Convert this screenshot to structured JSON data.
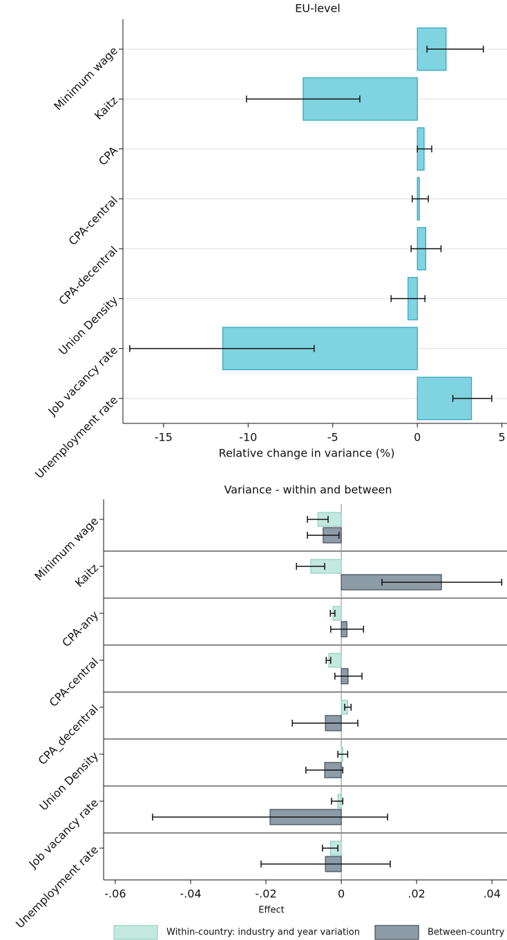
{
  "chart_data": [
    {
      "type": "bar",
      "orientation": "horizontal",
      "title": "EU-level",
      "x_label": "Relative change in variance (%)",
      "categories": [
        "Minimum wage",
        "Kaitz",
        "CPA",
        "CPA-central",
        "CPA-decentral",
        "Union Density",
        "Job vacancy rate",
        "Unemployment rate"
      ],
      "values": [
        1.7,
        -6.75,
        0.4,
        0.12,
        0.5,
        -0.55,
        -11.5,
        3.2
      ],
      "ci_low": [
        0.57,
        -10.1,
        0,
        -0.3,
        -0.37,
        -1.55,
        -17,
        2.1
      ],
      "ci_high": [
        3.9,
        -3.4,
        0.85,
        0.65,
        1.4,
        0.45,
        -6.1,
        4.4
      ],
      "color": "#80d3e0",
      "edgecolor": "#2aa3bd",
      "xlim": [
        -17.4,
        5.3
      ],
      "xticks": [
        -15,
        -10,
        -5,
        0,
        5
      ],
      "grid": true
    },
    {
      "type": "grouped_bar",
      "orientation": "horizontal",
      "title": "Variance - within and between",
      "x_label": "Effect",
      "categories": [
        "Minimum wage",
        "Kaitz",
        "CPA-any",
        "CPA-central",
        "CPA_decentral",
        "Union Density",
        "Job vacancy rate",
        "Unemployment rate"
      ],
      "series": [
        {
          "name": "Within-country: industry and year variation",
          "color": "#c3e8de",
          "edgecolor": "#8fd0c0",
          "values": [
            -0.0062,
            -0.0081,
            -0.0022,
            -0.0033,
            0.0017,
            0.0004,
            -0.0009,
            -0.0029
          ],
          "ci_low": [
            -0.009,
            -0.0119,
            -0.0029,
            -0.004,
            0.0009,
            -0.0009,
            -0.0026,
            -0.005
          ],
          "ci_high": [
            -0.0035,
            -0.0044,
            -0.0017,
            -0.0028,
            0.0026,
            0.0017,
            0.0004,
            -0.0009
          ]
        },
        {
          "name": "Between-country",
          "color": "#8e9ca8",
          "edgecolor": "#3e4a55",
          "values": [
            -0.0048,
            0.0266,
            0.0015,
            0.0018,
            -0.0042,
            -0.0044,
            -0.0189,
            -0.0042
          ],
          "ci_low": [
            -0.009,
            0.0108,
            -0.0028,
            -0.0017,
            -0.013,
            -0.0094,
            -0.0501,
            -0.0213
          ],
          "ci_high": [
            -0.0006,
            0.0426,
            0.0059,
            0.0055,
            0.0044,
            0.0004,
            0.0123,
            0.013
          ]
        }
      ],
      "xlim": [
        -0.0631,
        0.044
      ],
      "xticks": [
        {
          "value": -0.06,
          "label": "-.06"
        },
        {
          "value": -0.04,
          "label": "-.04"
        },
        {
          "value": -0.02,
          "label": "-.02"
        },
        0,
        {
          "value": 0.02,
          "label": ".02"
        },
        {
          "value": 0.04,
          "label": ".04"
        }
      ]
    }
  ]
}
